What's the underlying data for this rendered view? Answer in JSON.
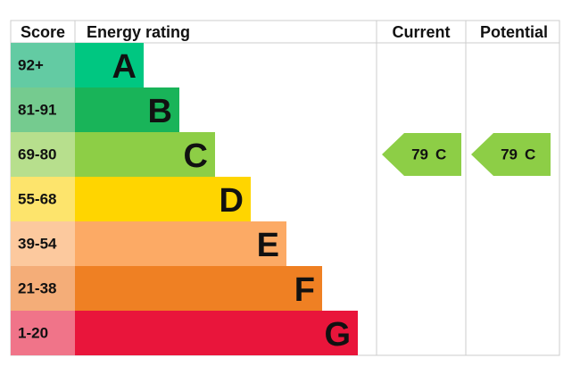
{
  "header": {
    "score": "Score",
    "rating": "Energy rating",
    "current": "Current",
    "potential": "Potential"
  },
  "bands": [
    {
      "score": "92+",
      "letter": "A",
      "color": "#00c781",
      "score_color": "#63cba3"
    },
    {
      "score": "81-91",
      "letter": "B",
      "color": "#19b459",
      "score_color": "#75cb8f"
    },
    {
      "score": "69-80",
      "letter": "C",
      "color": "#8dce46",
      "score_color": "#b7df8d"
    },
    {
      "score": "55-68",
      "letter": "D",
      "color": "#ffd500",
      "score_color": "#fde46c"
    },
    {
      "score": "39-54",
      "letter": "E",
      "color": "#fcaa65",
      "score_color": "#fcc99e"
    },
    {
      "score": "21-38",
      "letter": "F",
      "color": "#ef8023",
      "score_color": "#f4ad78"
    },
    {
      "score": "1-20",
      "letter": "G",
      "color": "#e9153b",
      "score_color": "#f07489"
    }
  ],
  "current": {
    "score": 79,
    "band": "C"
  },
  "potential": {
    "score": 79,
    "band": "C"
  }
}
